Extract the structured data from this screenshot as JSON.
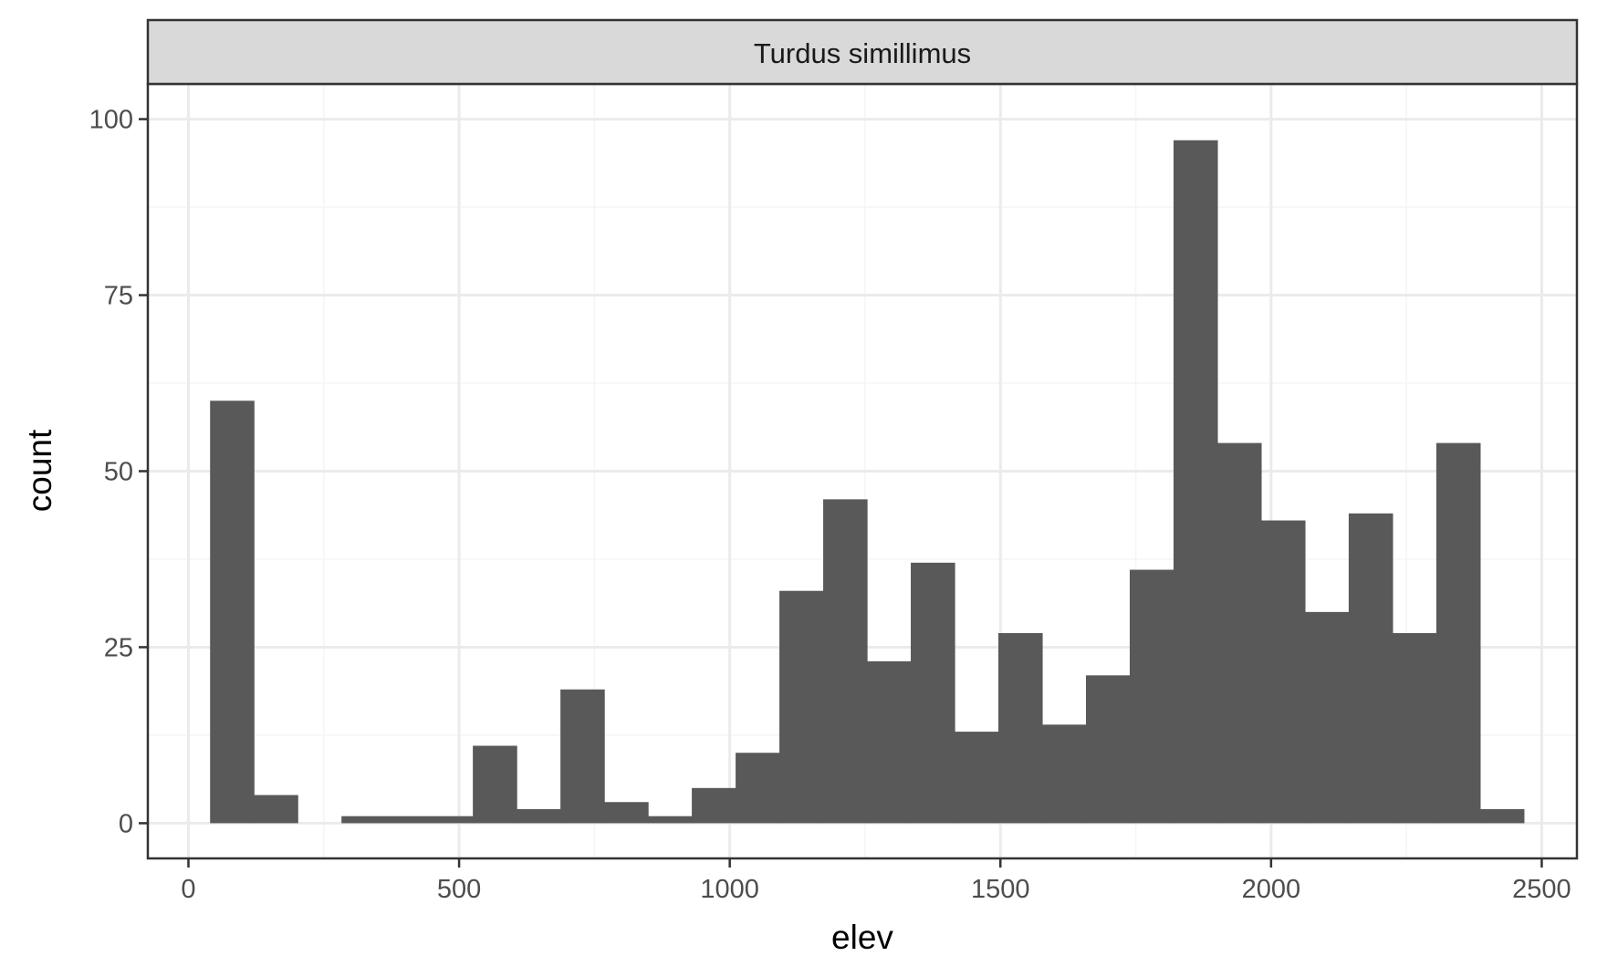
{
  "chart_data": {
    "type": "bar",
    "facet_label": "Turdus simillimus",
    "xlabel": "elev",
    "ylabel": "count",
    "xlim": [
      -75,
      2565
    ],
    "ylim": [
      -5,
      105
    ],
    "x_ticks": [
      0,
      500,
      1000,
      1500,
      2000,
      2500
    ],
    "x_minor_ticks": [
      250,
      750,
      1250,
      1750,
      2250
    ],
    "y_ticks": [
      0,
      25,
      50,
      75,
      100
    ],
    "y_minor_ticks": [
      12.5,
      37.5,
      62.5,
      87.5
    ],
    "grid": true,
    "bin_width": 80.9,
    "bins": [
      {
        "x0": 40.0,
        "count": 60
      },
      {
        "x0": 120.9,
        "count": 4
      },
      {
        "x0": 201.8,
        "count": 0
      },
      {
        "x0": 282.7,
        "count": 1
      },
      {
        "x0": 363.6,
        "count": 1
      },
      {
        "x0": 444.5,
        "count": 1
      },
      {
        "x0": 525.4,
        "count": 11
      },
      {
        "x0": 606.3,
        "count": 2
      },
      {
        "x0": 687.2,
        "count": 19
      },
      {
        "x0": 768.1,
        "count": 3
      },
      {
        "x0": 849.0,
        "count": 1
      },
      {
        "x0": 929.9,
        "count": 5
      },
      {
        "x0": 1010.8,
        "count": 10
      },
      {
        "x0": 1091.7,
        "count": 33
      },
      {
        "x0": 1172.6,
        "count": 46
      },
      {
        "x0": 1253.5,
        "count": 23
      },
      {
        "x0": 1334.4,
        "count": 37
      },
      {
        "x0": 1415.3,
        "count": 13
      },
      {
        "x0": 1496.2,
        "count": 27
      },
      {
        "x0": 1577.1,
        "count": 14
      },
      {
        "x0": 1658.0,
        "count": 21
      },
      {
        "x0": 1738.9,
        "count": 36
      },
      {
        "x0": 1819.8,
        "count": 97
      },
      {
        "x0": 1900.7,
        "count": 54
      },
      {
        "x0": 1981.6,
        "count": 43
      },
      {
        "x0": 2062.5,
        "count": 30
      },
      {
        "x0": 2143.4,
        "count": 44
      },
      {
        "x0": 2224.3,
        "count": 27
      },
      {
        "x0": 2305.2,
        "count": 54
      },
      {
        "x0": 2386.1,
        "count": 2
      }
    ],
    "colors": {
      "bar": "#595959",
      "strip_fill": "#d9d9d9",
      "grid_major": "#ebebeb",
      "grid_minor": "#f5f5f5",
      "border": "#333333"
    }
  }
}
